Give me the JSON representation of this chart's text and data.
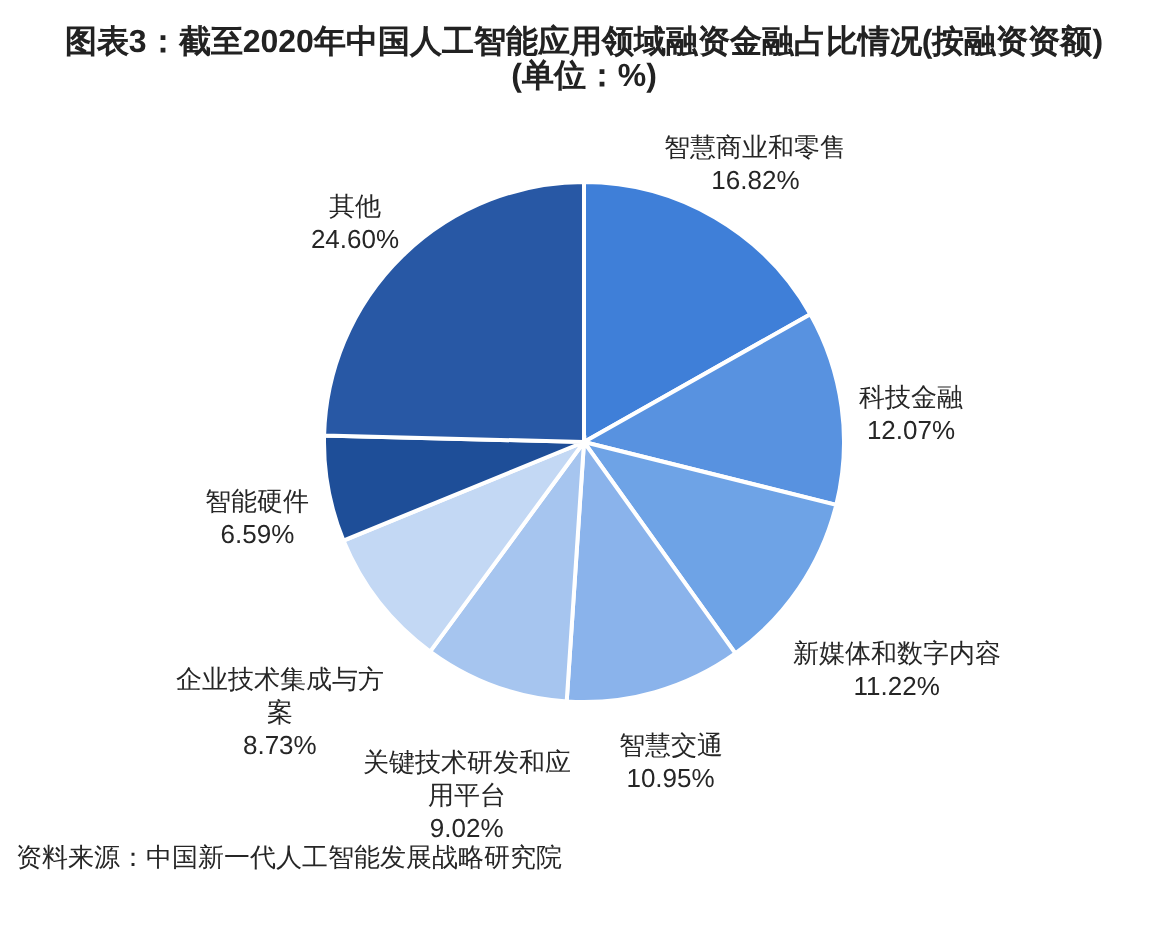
{
  "chart_data": {
    "type": "pie",
    "title": "图表3：截至2020年中国人工智能应用领域融资金融占比情况(按融资资额)",
    "subtitle": "(单位：%)",
    "categories": [
      "智慧商业和零售",
      "科技金融",
      "新媒体和数字内容",
      "智慧交通",
      "关键技术研发和应用平台",
      "企业技术集成与方案",
      "智能硬件",
      "其他"
    ],
    "values": [
      16.82,
      12.07,
      11.22,
      10.95,
      9.02,
      8.73,
      6.59,
      24.6
    ],
    "colors": [
      "#3f7fd8",
      "#5892e0",
      "#6ea3e6",
      "#8ab3eb",
      "#a6c5ef",
      "#c3d8f4",
      "#1e4e98",
      "#2858a5"
    ],
    "value_labels": [
      "16.82%",
      "12.07%",
      "11.22%",
      "10.95%",
      "9.02%",
      "8.73%",
      "6.59%",
      "24.60%"
    ],
    "annotations": [
      "资料来源：中国新一代人工智能发展战略研究院"
    ]
  }
}
